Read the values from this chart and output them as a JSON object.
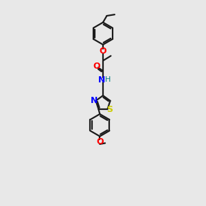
{
  "bg_color": "#e8e8e8",
  "bond_color": "#1a1a1a",
  "N_color": "#0000ff",
  "O_color": "#ff0000",
  "S_color": "#cccc00",
  "H_color": "#008080",
  "lw": 1.6,
  "xlim": [
    0,
    10
  ],
  "ylim": [
    0,
    16
  ],
  "figsize": [
    3.0,
    3.0
  ],
  "dpi": 100
}
